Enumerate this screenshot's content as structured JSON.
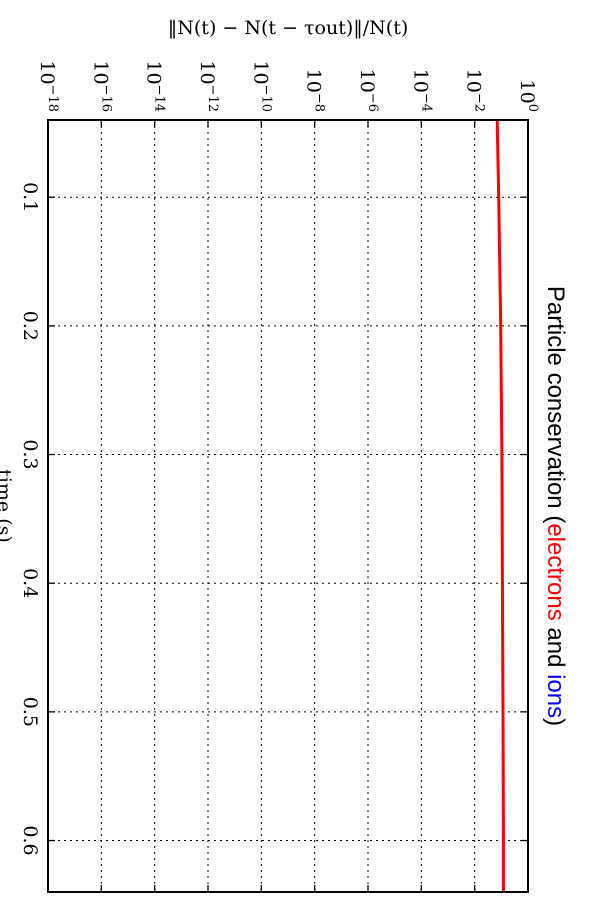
{
  "chart_data": {
    "type": "line",
    "title_parts": [
      {
        "text": "Particle conservation (",
        "color": "#000000"
      },
      {
        "text": "electrons",
        "color": "#ff0000"
      },
      {
        "text": " and ",
        "color": "#000000"
      },
      {
        "text": "ions",
        "color": "#0000ff"
      },
      {
        "text": ")",
        "color": "#000000"
      }
    ],
    "xlabel": "time (s)",
    "ylabel": "‖N(t) − N(t − τout)‖/N(t)",
    "xlim": [
      0.04,
      0.64
    ],
    "ylim_log10": [
      -18,
      0
    ],
    "x_ticks": [
      {
        "value": 0.1,
        "label": "0.1"
      },
      {
        "value": 0.2,
        "label": "0.2"
      },
      {
        "value": 0.3,
        "label": "0.3"
      },
      {
        "value": 0.4,
        "label": "0.4"
      },
      {
        "value": 0.5,
        "label": "0.5"
      },
      {
        "value": 0.6,
        "label": "0.6"
      }
    ],
    "y_ticks": [
      {
        "exp": 0,
        "base": "10",
        "sup": "0"
      },
      {
        "exp": -2,
        "base": "10",
        "sup": "−2"
      },
      {
        "exp": -4,
        "base": "10",
        "sup": "−4"
      },
      {
        "exp": -6,
        "base": "10",
        "sup": "−6"
      },
      {
        "exp": -8,
        "base": "10",
        "sup": "−8"
      },
      {
        "exp": -10,
        "base": "10",
        "sup": "−10"
      },
      {
        "exp": -12,
        "base": "10",
        "sup": "−12"
      },
      {
        "exp": -14,
        "base": "10",
        "sup": "−14"
      },
      {
        "exp": -16,
        "base": "10",
        "sup": "−16"
      },
      {
        "exp": -18,
        "base": "10",
        "sup": "−18"
      }
    ],
    "grid": true,
    "series": [
      {
        "color": "#ff0000",
        "x": [
          0.04,
          0.1,
          0.2,
          0.3,
          0.4,
          0.5,
          0.6,
          0.64
        ],
        "y": [
          0.07,
          0.08,
          0.095,
          0.105,
          0.11,
          0.115,
          0.12,
          0.12
        ]
      }
    ]
  }
}
